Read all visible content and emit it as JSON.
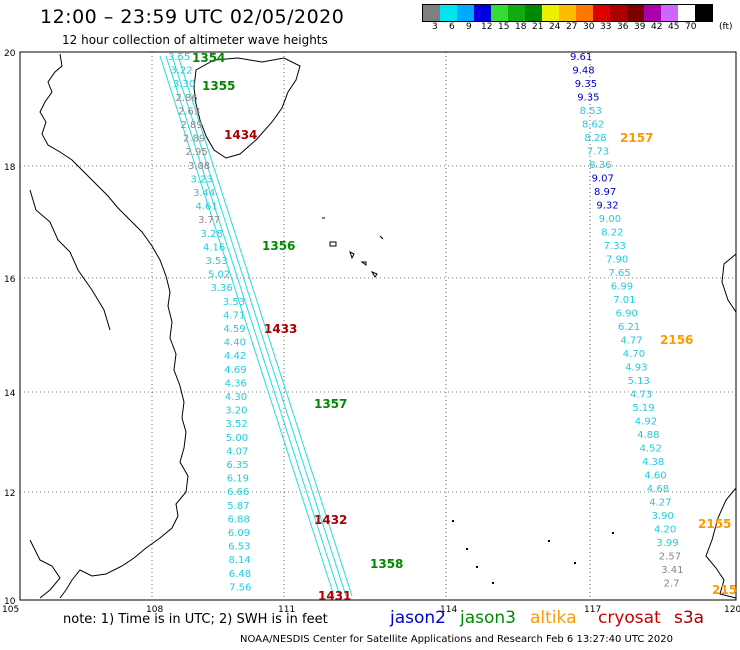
{
  "header": {
    "title": "12:00 – 23:59 UTC 02/05/2020",
    "subtitle": "12 hour collection of altimeter wave heights"
  },
  "colorbar": {
    "unit": "(ft)",
    "bins": [
      {
        "label": "3",
        "color": "#7f7f7f"
      },
      {
        "label": "6",
        "color": "#00e5ee"
      },
      {
        "label": "9",
        "color": "#00aaff"
      },
      {
        "label": "12",
        "color": "#0000e0"
      },
      {
        "label": "15",
        "color": "#33dd33"
      },
      {
        "label": "18",
        "color": "#11aa11"
      },
      {
        "label": "21",
        "color": "#008800"
      },
      {
        "label": "24",
        "color": "#eeee00"
      },
      {
        "label": "27",
        "color": "#ffbb00"
      },
      {
        "label": "30",
        "color": "#ff7700"
      },
      {
        "label": "33",
        "color": "#dd0000"
      },
      {
        "label": "36",
        "color": "#aa0000"
      },
      {
        "label": "39",
        "color": "#7a0000"
      },
      {
        "label": "42",
        "color": "#aa00aa"
      },
      {
        "label": "45",
        "color": "#cc66ff"
      },
      {
        "label": "70",
        "color": "#ffffff"
      },
      {
        "label": "",
        "color": "#000000"
      }
    ]
  },
  "axes": {
    "lon_ticks": [
      "105",
      "108",
      "111",
      "114",
      "117",
      "120"
    ],
    "lat_ticks": [
      "20",
      "18",
      "16",
      "14",
      "12",
      "10"
    ]
  },
  "tracks": {
    "cryosat_east_values": [
      "9.61",
      "9.48",
      "9.35",
      "9.35",
      "8.53",
      "8.62",
      "8.28",
      "7.73",
      "8.36",
      "9.07",
      "8.97",
      "9.32",
      "9.00",
      "8.22",
      "7.33",
      "7.90",
      "7.65",
      "6.99",
      "7.01",
      "6.90",
      "6.21",
      "4.77",
      "4.70",
      "4.93",
      "5.13",
      "4.73",
      "5.19",
      "4.92",
      "4.88",
      "4.52",
      "4.38",
      "4.60",
      "4.68",
      "4.27",
      "3.90",
      "4.20",
      "3.99",
      "2.57",
      "3.41",
      "2.7"
    ],
    "jason3_west_values": [
      "3.55",
      "3.22",
      "3.30",
      "2.86",
      "2.63",
      "2.89",
      "2.89",
      "2.95",
      "3.08",
      "3.23",
      "3.44",
      "4.61",
      "3.77",
      "3.28",
      "4.16",
      "3.53",
      "5.02",
      "3.36",
      "3.53",
      "4.71",
      "4.59",
      "4.40",
      "4.42",
      "4.69",
      "4.36",
      "4.30",
      "3.20",
      "3.52",
      "5.00",
      "4.07",
      "6.35",
      "6.19",
      "6.66",
      "5.87",
      "6.88",
      "6.09",
      "6.53",
      "8.14",
      "6.48",
      "7.56"
    ],
    "pass_labels": [
      {
        "text": "1354",
        "color": "#008800"
      },
      {
        "text": "1355",
        "color": "#008800"
      },
      {
        "text": "1434",
        "color": "#aa0000"
      },
      {
        "text": "1356",
        "color": "#008800"
      },
      {
        "text": "1433",
        "color": "#aa0000"
      },
      {
        "text": "1357",
        "color": "#008800"
      },
      {
        "text": "1432",
        "color": "#aa0000"
      },
      {
        "text": "1358",
        "color": "#008800"
      },
      {
        "text": "1431",
        "color": "#aa0000"
      },
      {
        "text": "2157",
        "color": "#ff9900"
      },
      {
        "text": "2156",
        "color": "#ff9900"
      },
      {
        "text": "2155",
        "color": "#ff9900"
      },
      {
        "text": "215",
        "color": "#ff9900"
      }
    ]
  },
  "footer": {
    "note": "note:  1) Time is in UTC;  2) SWH is in feet",
    "satellites": [
      {
        "name": "jason2",
        "color": "#0000cc"
      },
      {
        "name": "jason3",
        "color": "#008800"
      },
      {
        "name": "altika",
        "color": "#ff9900"
      },
      {
        "name": "cryosat",
        "color": "#cc0000"
      },
      {
        "name": "s3a",
        "color": "#aa0000"
      }
    ],
    "credit": "NOAA/NESDIS Center for Satellite Applications and Research    Feb  6 13:27:40 UTC 2020"
  }
}
